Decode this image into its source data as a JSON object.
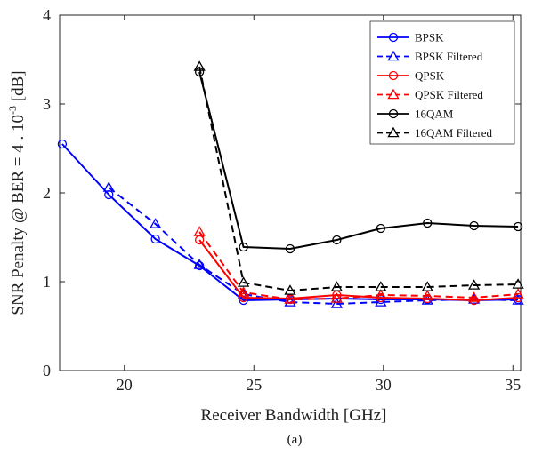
{
  "chart_data": {
    "type": "line",
    "xlabel": "Receiver Bandwidth [GHz]",
    "ylabel": {
      "prefix": "SNR Penalty  @ BER = 4 . 10",
      "superscript": "-3",
      "suffix": " [dB]"
    },
    "caption": "(a)",
    "xlim": [
      17.5,
      35.3
    ],
    "ylim": [
      0,
      4
    ],
    "x_ticks": [
      20,
      25,
      30,
      35
    ],
    "y_ticks": [
      0,
      1,
      2,
      3,
      4
    ],
    "grid": false,
    "legend_position": "top-right",
    "series": [
      {
        "name": "BPSK",
        "color": "#0000ff",
        "dash": "solid",
        "marker": "circle",
        "x": [
          17.6,
          19.4,
          21.2,
          22.9,
          24.6,
          26.4,
          28.2,
          29.9,
          31.7,
          33.5,
          35.2
        ],
        "y": [
          2.55,
          1.98,
          1.48,
          1.18,
          0.79,
          0.8,
          0.81,
          0.8,
          0.8,
          0.79,
          0.8
        ]
      },
      {
        "name": "BPSK Filtered",
        "color": "#0000ff",
        "dash": "dashed",
        "marker": "triangle",
        "x": [
          19.4,
          21.2,
          22.9,
          24.6,
          26.4,
          28.2,
          29.9,
          31.7,
          33.5,
          35.2
        ],
        "y": [
          2.06,
          1.65,
          1.19,
          0.86,
          0.77,
          0.75,
          0.77,
          0.79,
          0.8,
          0.79
        ]
      },
      {
        "name": "QPSK",
        "color": "#ff0000",
        "dash": "solid",
        "marker": "circle",
        "x": [
          22.9,
          24.6,
          26.4,
          28.2,
          29.9,
          31.7,
          33.5,
          35.2
        ],
        "y": [
          1.47,
          0.82,
          0.81,
          0.85,
          0.82,
          0.81,
          0.79,
          0.82
        ]
      },
      {
        "name": "QPSK Filtered",
        "color": "#ff0000",
        "dash": "dashed",
        "marker": "triangle",
        "x": [
          22.9,
          24.6,
          26.4,
          28.2,
          29.9,
          31.7,
          33.5,
          35.2
        ],
        "y": [
          1.56,
          0.88,
          0.8,
          0.81,
          0.85,
          0.84,
          0.82,
          0.86
        ]
      },
      {
        "name": "16QAM",
        "color": "#000000",
        "dash": "solid",
        "marker": "circle",
        "x": [
          22.9,
          24.6,
          26.4,
          28.2,
          29.9,
          31.7,
          33.5,
          35.2
        ],
        "y": [
          3.36,
          1.39,
          1.37,
          1.47,
          1.6,
          1.66,
          1.63,
          1.62
        ]
      },
      {
        "name": "16QAM Filtered",
        "color": "#000000",
        "dash": "dashed",
        "marker": "triangle",
        "x": [
          22.9,
          24.6,
          26.4,
          28.2,
          29.9,
          31.7,
          33.5,
          35.2
        ],
        "y": [
          3.42,
          0.99,
          0.9,
          0.94,
          0.94,
          0.94,
          0.96,
          0.97
        ]
      }
    ]
  }
}
